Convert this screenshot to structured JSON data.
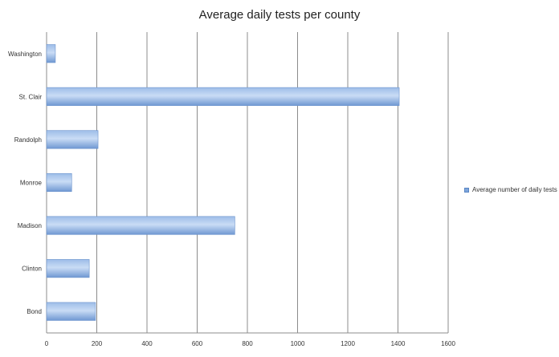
{
  "chart_data": {
    "type": "bar",
    "orientation": "horizontal",
    "title": "Average daily tests per county",
    "xlabel": "",
    "ylabel": "",
    "categories": [
      "Washington",
      "St. Clair",
      "Randolph",
      "Monroe",
      "Madison",
      "Clinton",
      "Bond"
    ],
    "series": [
      {
        "name": "Average number of daily tests",
        "values": [
          35,
          1405,
          205,
          100,
          750,
          170,
          195
        ]
      }
    ],
    "xlim": [
      0,
      1600
    ],
    "xticks": [
      0,
      200,
      400,
      600,
      800,
      1000,
      1200,
      1400,
      1600
    ],
    "grid": true,
    "legend_position": "right",
    "bar_color": "#7ea6dc"
  }
}
